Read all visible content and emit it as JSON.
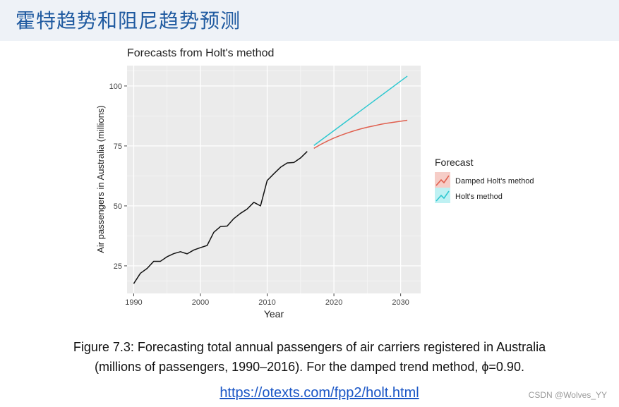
{
  "slide": {
    "title": "霍特趋势和阻尼趋势预测",
    "caption_line1": "Figure 7.3: Forecasting total annual passengers of air carriers registered in Australia",
    "caption_line2": "(millions of passengers, 1990–2016). For the damped trend method, ϕ=0.90.",
    "link": "https://otexts.com/fpp2/holt.html",
    "watermark": "CSDN @Wolves_YY"
  },
  "chart_data": {
    "type": "line",
    "title": "Forecasts from Holt's method",
    "xlabel": "Year",
    "ylabel": "Air passengers in Australia (millions)",
    "xlim": [
      1989,
      2033
    ],
    "ylim": [
      13.5,
      108.5
    ],
    "x_ticks": [
      1990,
      2000,
      2010,
      2020,
      2030
    ],
    "y_ticks": [
      25,
      50,
      75,
      100
    ],
    "legend": {
      "title": "Forecast",
      "position": "right",
      "entries": [
        "Damped Holt's method",
        "Holt's method"
      ]
    },
    "colors": {
      "observed": "#111111",
      "damped": "#e0604f",
      "holt": "#2ec8d0",
      "panel": "#ebebeb"
    },
    "series": [
      {
        "name": "Observed",
        "x": [
          1990,
          1991,
          1992,
          1993,
          1994,
          1995,
          1996,
          1997,
          1998,
          1999,
          2000,
          2001,
          2002,
          2003,
          2004,
          2005,
          2006,
          2007,
          2008,
          2009,
          2010,
          2011,
          2012,
          2013,
          2014,
          2015,
          2016
        ],
        "values": [
          17.6,
          21.9,
          23.9,
          26.9,
          26.9,
          28.8,
          30.1,
          30.9,
          30.0,
          31.6,
          32.6,
          33.5,
          39.0,
          41.4,
          41.6,
          44.7,
          46.9,
          48.7,
          51.5,
          50.0,
          60.6,
          63.4,
          66.1,
          67.9,
          68.1,
          70.0,
          72.7
        ]
      },
      {
        "name": "Damped Holt's method",
        "x": [
          2017,
          2018,
          2019,
          2020,
          2021,
          2022,
          2023,
          2024,
          2025,
          2026,
          2027,
          2028,
          2029,
          2030,
          2031
        ],
        "values": [
          74.0,
          75.6,
          77.0,
          78.3,
          79.4,
          80.4,
          81.3,
          82.1,
          82.8,
          83.4,
          84.0,
          84.5,
          84.9,
          85.3,
          85.7
        ]
      },
      {
        "name": "Holt's method",
        "x": [
          2017,
          2031
        ],
        "values": [
          75.2,
          104.1
        ]
      }
    ]
  }
}
